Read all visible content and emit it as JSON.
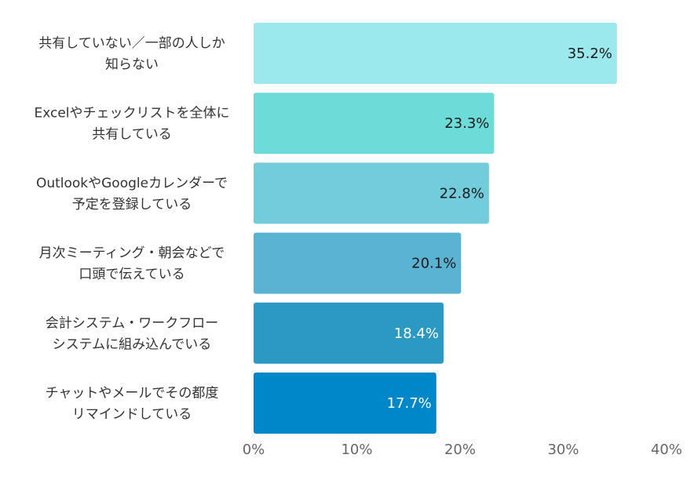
{
  "chart_data": {
    "type": "bar",
    "orientation": "horizontal",
    "unit": "%",
    "xlim": [
      0,
      40
    ],
    "grid": false,
    "legend": "none",
    "x_ticks": [
      "0%",
      "10%",
      "20%",
      "30%",
      "40%"
    ],
    "categories": [
      [
        "共有していない／一部の人しか",
        "知らない"
      ],
      [
        "Excelやチェックリストを全体に",
        "共有している"
      ],
      [
        "OutlookやGoogleカレンダーで",
        "予定を登録している"
      ],
      [
        "月次ミーティング・朝会などで",
        "口頭で伝えている"
      ],
      [
        "会計システム・ワークフロー",
        "システムに組み込んでいる"
      ],
      [
        "チャットやメールでその都度",
        "リマインドしている"
      ]
    ],
    "values": [
      35.2,
      23.3,
      22.8,
      20.1,
      18.4,
      17.7
    ],
    "value_labels": [
      "35.2%",
      "23.3%",
      "22.8%",
      "20.1%",
      "18.4%",
      "17.7%"
    ],
    "colors": [
      "#9BE9ED",
      "#6DDBD8",
      "#72CCDB",
      "#5BB3D3",
      "#2B99C4",
      "#0087C9"
    ],
    "label_colors": [
      "#1a1a1a",
      "#1a1a1a",
      "#1a1a1a",
      "#1a1a1a",
      "#ffffff",
      "#ffffff"
    ]
  }
}
